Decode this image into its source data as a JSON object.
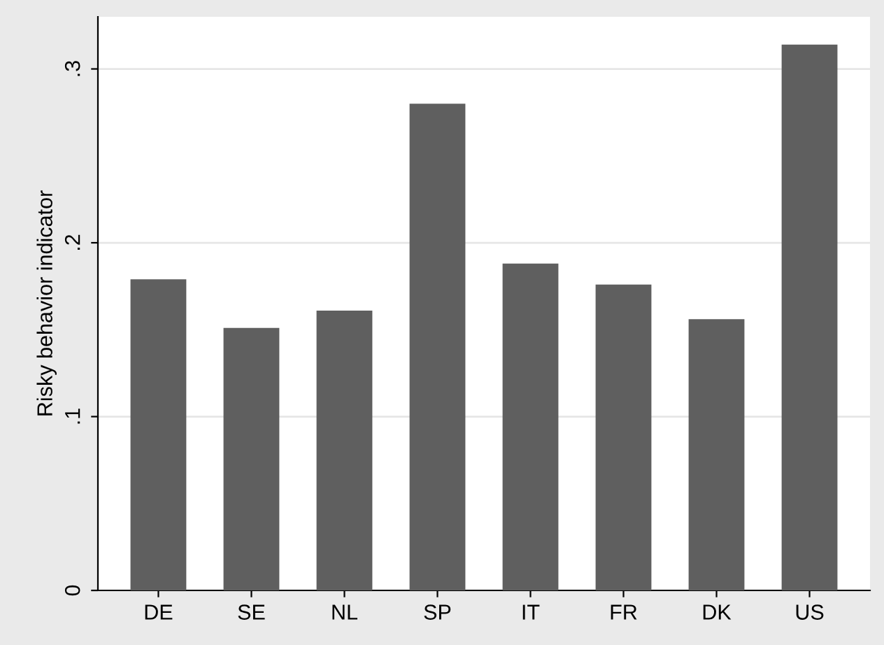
{
  "chart_data": {
    "type": "bar",
    "ylabel": "Risky behavior indicator",
    "categories": [
      "DE",
      "SE",
      "NL",
      "SP",
      "IT",
      "FR",
      "DK",
      "US"
    ],
    "values": [
      0.179,
      0.151,
      0.161,
      0.28,
      0.188,
      0.176,
      0.156,
      0.314
    ],
    "color": "#5f5f5f",
    "ylim": [
      0,
      0.33
    ],
    "yticks": [
      {
        "value": 0,
        "label": "0"
      },
      {
        "value": 0.1,
        "label": ".1"
      },
      {
        "value": 0.2,
        "label": ".2"
      },
      {
        "value": 0.3,
        "label": ".3"
      }
    ],
    "grid": "y"
  }
}
